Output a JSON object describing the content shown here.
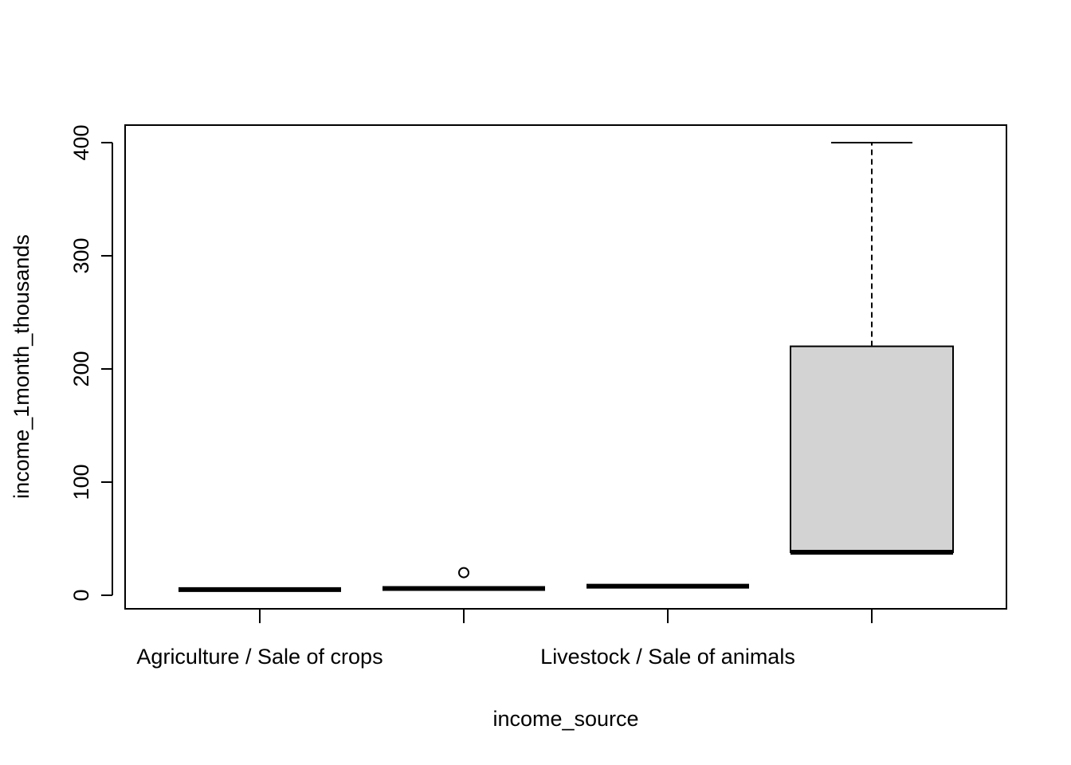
{
  "chart_data": {
    "type": "boxplot",
    "xlabel": "income_source",
    "ylabel": "income_1month_thousands",
    "ylim": [
      -12,
      415
    ],
    "yticks": [
      0,
      100,
      200,
      300,
      400
    ],
    "grid": false,
    "legend": "none",
    "categories": [
      "Agriculture / Sale of crops",
      "",
      "Livestock / Sale of animals",
      ""
    ],
    "boxes": [
      {
        "min": 5,
        "q1": 5,
        "median": 5,
        "q3": 5,
        "max": 5,
        "outliers": []
      },
      {
        "min": 6,
        "q1": 6,
        "median": 6,
        "q3": 6,
        "max": 6,
        "outliers": [
          20
        ]
      },
      {
        "min": 8,
        "q1": 8,
        "median": 8,
        "q3": 8,
        "max": 8,
        "outliers": []
      },
      {
        "min": 38,
        "q1": 38,
        "median": 38,
        "q3": 220,
        "max": 400,
        "outliers": []
      }
    ],
    "colors": {
      "box_fill": "#d3d3d3",
      "line": "#000000"
    }
  }
}
